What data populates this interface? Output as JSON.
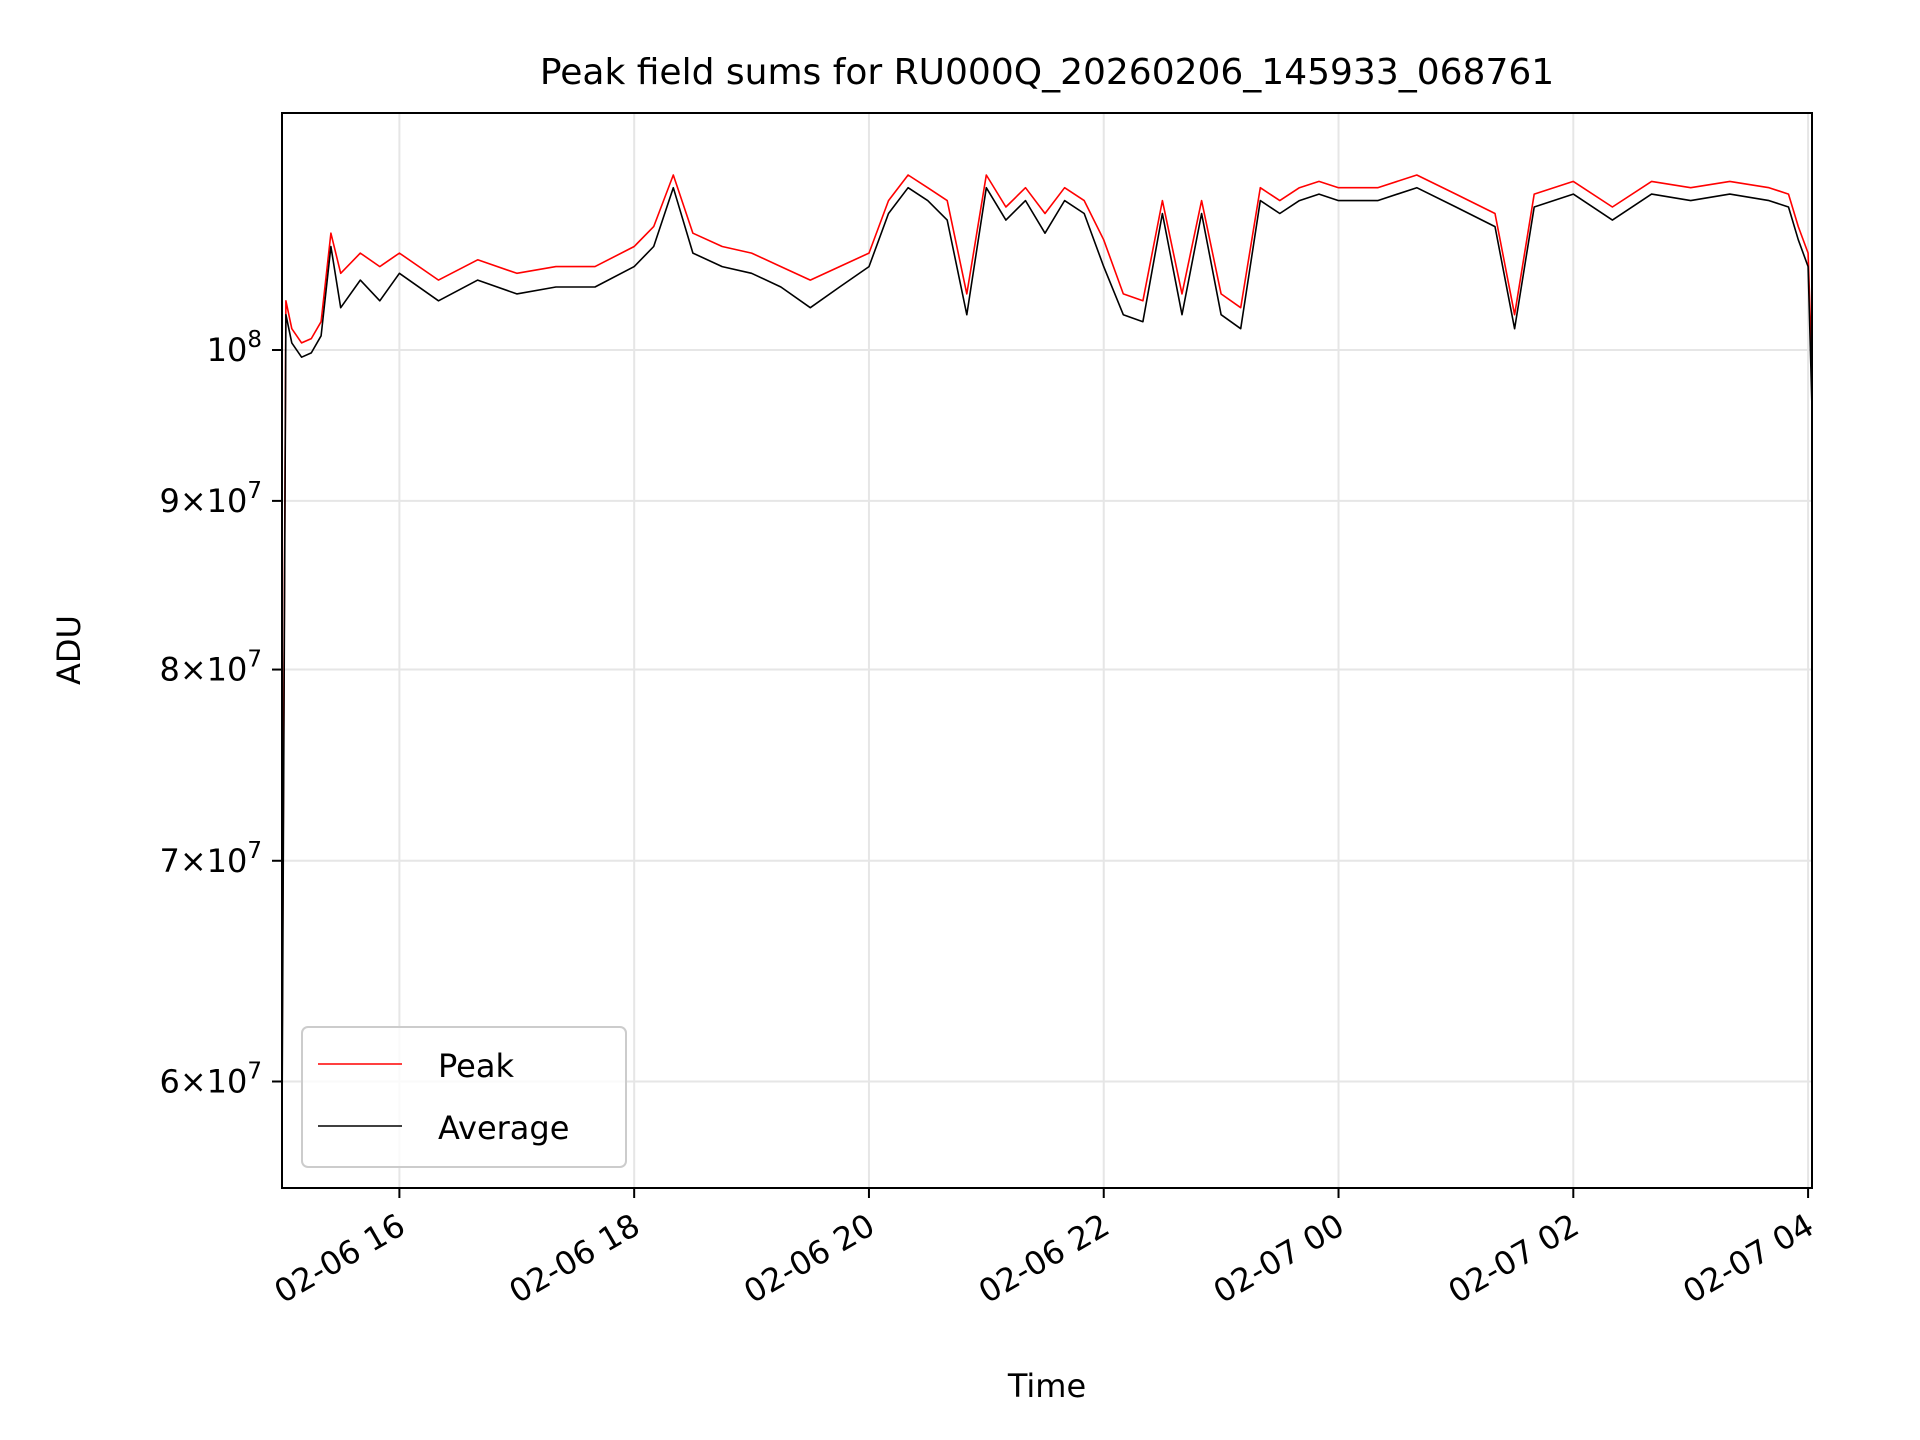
{
  "chart_data": {
    "type": "line",
    "title": "Peak field sums for RU000Q_20260206_145933_068761",
    "xlabel": "Time",
    "ylabel": "ADU",
    "yscale": "log",
    "xlim": [
      "2026-02-06 15:00",
      "2026-02-07 04:02"
    ],
    "ylim": [
      55700000,
      118000000
    ],
    "x_ticks": [
      "02-06 16",
      "02-06 18",
      "02-06 20",
      "02-06 22",
      "02-07 00",
      "02-07 02",
      "02-07 04"
    ],
    "y_ticks": [
      {
        "base": "6",
        "exp": "7",
        "pow10": false
      },
      {
        "base": "7",
        "exp": "7",
        "pow10": false
      },
      {
        "base": "8",
        "exp": "7",
        "pow10": false
      },
      {
        "base": "9",
        "exp": "7",
        "pow10": false
      },
      {
        "base": "",
        "exp": "8",
        "pow10": true
      }
    ],
    "grid": true,
    "legend_position": "lower-left",
    "x": [
      "2026-02-06 15:00",
      "2026-02-06 15:02",
      "2026-02-06 15:05",
      "2026-02-06 15:10",
      "2026-02-06 15:15",
      "2026-02-06 15:20",
      "2026-02-06 15:25",
      "2026-02-06 15:30",
      "2026-02-06 15:40",
      "2026-02-06 15:50",
      "2026-02-06 16:00",
      "2026-02-06 16:20",
      "2026-02-06 16:40",
      "2026-02-06 17:00",
      "2026-02-06 17:20",
      "2026-02-06 17:40",
      "2026-02-06 18:00",
      "2026-02-06 18:10",
      "2026-02-06 18:20",
      "2026-02-06 18:30",
      "2026-02-06 18:45",
      "2026-02-06 19:00",
      "2026-02-06 19:15",
      "2026-02-06 19:30",
      "2026-02-06 19:45",
      "2026-02-06 20:00",
      "2026-02-06 20:10",
      "2026-02-06 20:20",
      "2026-02-06 20:30",
      "2026-02-06 20:40",
      "2026-02-06 20:50",
      "2026-02-06 21:00",
      "2026-02-06 21:10",
      "2026-02-06 21:20",
      "2026-02-06 21:30",
      "2026-02-06 21:40",
      "2026-02-06 21:50",
      "2026-02-06 22:00",
      "2026-02-06 22:10",
      "2026-02-06 22:20",
      "2026-02-06 22:30",
      "2026-02-06 22:40",
      "2026-02-06 22:50",
      "2026-02-06 23:00",
      "2026-02-06 23:10",
      "2026-02-06 23:20",
      "2026-02-06 23:30",
      "2026-02-06 23:40",
      "2026-02-06 23:50",
      "2026-02-07 00:00",
      "2026-02-07 00:20",
      "2026-02-07 00:40",
      "2026-02-07 01:00",
      "2026-02-07 01:20",
      "2026-02-07 01:30",
      "2026-02-07 01:40",
      "2026-02-07 02:00",
      "2026-02-07 02:20",
      "2026-02-07 02:40",
      "2026-02-07 03:00",
      "2026-02-07 03:20",
      "2026-02-07 03:40",
      "2026-02-07 03:50",
      "2026-02-07 03:55",
      "2026-02-07 04:00",
      "2026-02-07 04:02"
    ],
    "series": [
      {
        "name": "Peak",
        "color": "#ff0000",
        "values": [
          60500000,
          103500000,
          101500000,
          100500000,
          100800000,
          102000000,
          108500000,
          105500000,
          107000000,
          106000000,
          107000000,
          105000000,
          106500000,
          105500000,
          106000000,
          106000000,
          107500000,
          109000000,
          113000000,
          108500000,
          107500000,
          107000000,
          106000000,
          105000000,
          106000000,
          107000000,
          111000000,
          113000000,
          112000000,
          111000000,
          104000000,
          113000000,
          110500000,
          112000000,
          110000000,
          112000000,
          111000000,
          108000000,
          104000000,
          103500000,
          111000000,
          104000000,
          111000000,
          104000000,
          103000000,
          112000000,
          111000000,
          112000000,
          112500000,
          112000000,
          112000000,
          113000000,
          111500000,
          110000000,
          102500000,
          111500000,
          112500000,
          110500000,
          112500000,
          112000000,
          112500000,
          112000000,
          111500000,
          109000000,
          107000000,
          98500000
        ]
      },
      {
        "name": "Average",
        "color": "#000000",
        "values": [
          58000000,
          102500000,
          100500000,
          99500000,
          99800000,
          101000000,
          107500000,
          103000000,
          105000000,
          103500000,
          105500000,
          103500000,
          105000000,
          104000000,
          104500000,
          104500000,
          106000000,
          107500000,
          112000000,
          107000000,
          106000000,
          105500000,
          104500000,
          103000000,
          104500000,
          106000000,
          110000000,
          112000000,
          111000000,
          109500000,
          102500000,
          112000000,
          109500000,
          111000000,
          108500000,
          111000000,
          110000000,
          106000000,
          102500000,
          102000000,
          110000000,
          102500000,
          110000000,
          102500000,
          101500000,
          111000000,
          110000000,
          111000000,
          111500000,
          111000000,
          111000000,
          112000000,
          110500000,
          109000000,
          101500000,
          110500000,
          111500000,
          109500000,
          111500000,
          111000000,
          111500000,
          111000000,
          110500000,
          108000000,
          106000000,
          96000000
        ]
      }
    ]
  }
}
